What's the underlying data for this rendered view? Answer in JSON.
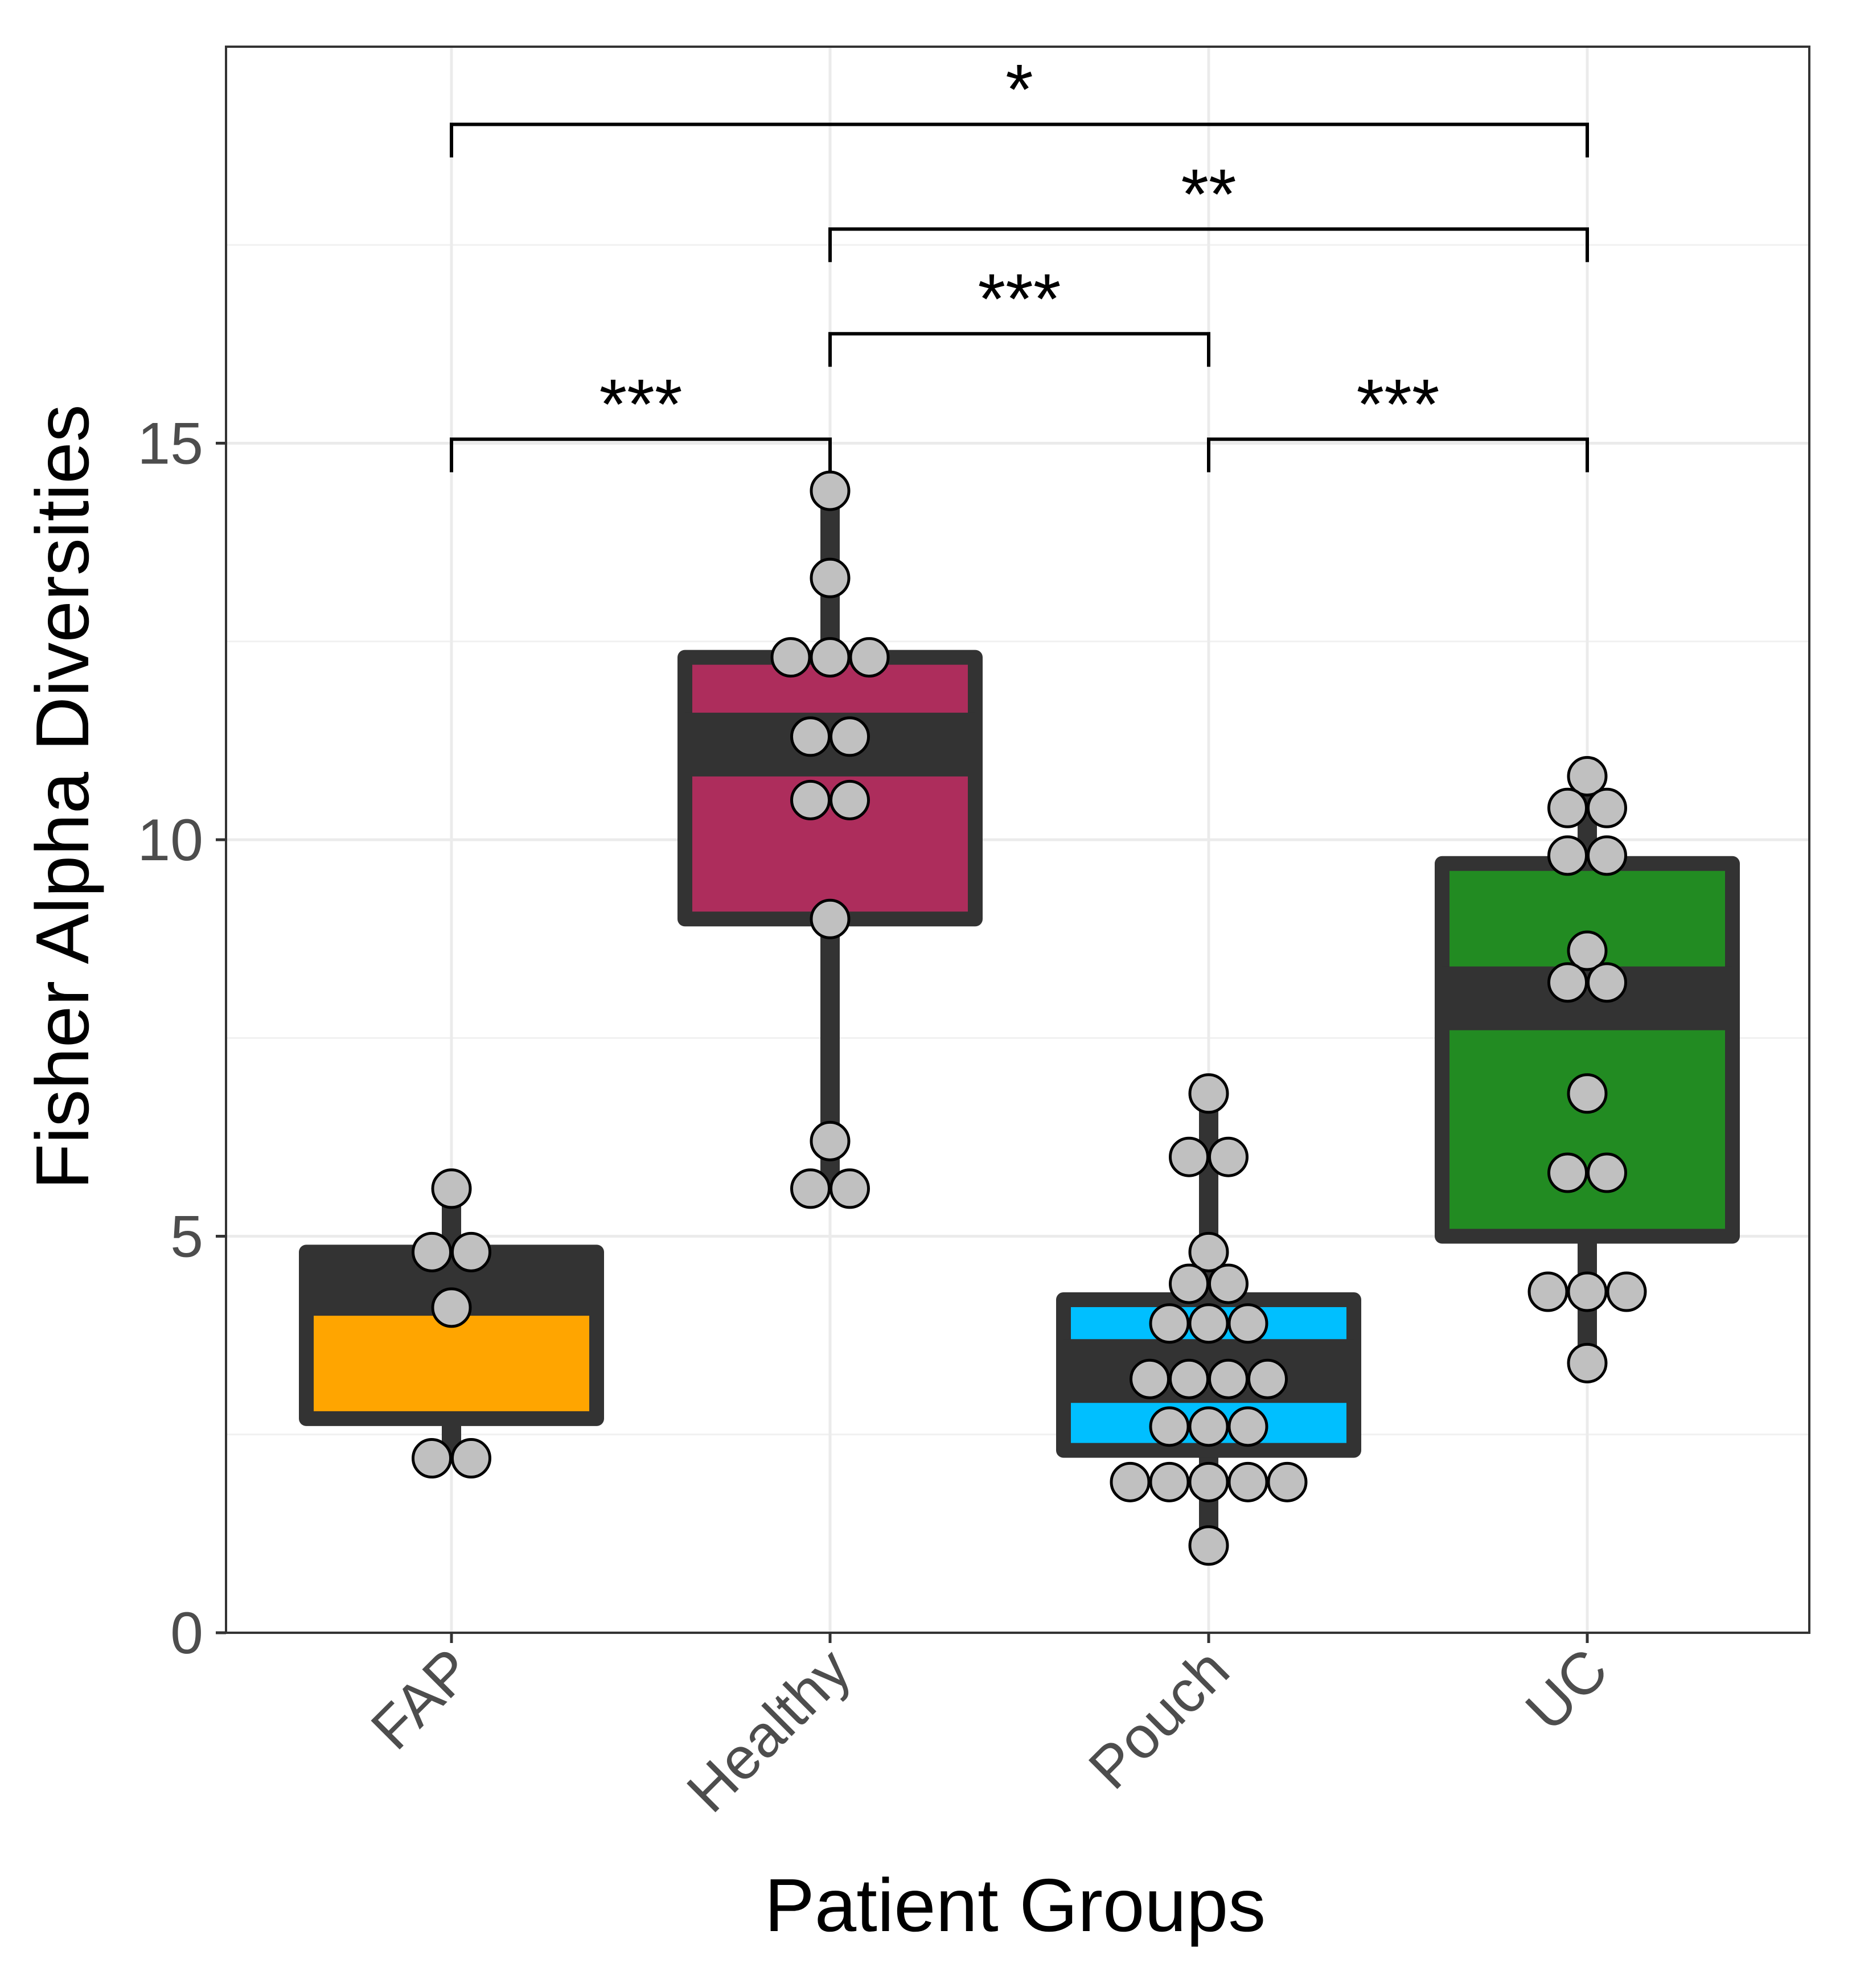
{
  "chart_data": {
    "type": "boxplot",
    "title": "",
    "xlabel": "Patient Groups",
    "ylabel": "Fisher Alpha Diversities",
    "ylim": [
      0,
      20
    ],
    "yticks": [
      0,
      5,
      10,
      15
    ],
    "grid": true,
    "categories": [
      "FAP",
      "Healthy",
      "Pouch",
      "UC"
    ],
    "colors": {
      "FAP": "#ffa500",
      "Healthy": "#ad2d5c",
      "Pouch": "#00bfff",
      "UC": "#228b22",
      "box_outline": "#333333",
      "points": "#c0c0c0"
    },
    "boxes": [
      {
        "group": "FAP",
        "whisker_low": 2.2,
        "q1": 2.7,
        "median": 4.4,
        "q3": 4.8,
        "whisker_high": 5.6
      },
      {
        "group": "Healthy",
        "whisker_low": 5.6,
        "q1": 9.0,
        "median": 11.2,
        "q3": 12.3,
        "whisker_high": 14.4
      },
      {
        "group": "Pouch",
        "whisker_low": 1.1,
        "q1": 2.3,
        "median": 3.3,
        "q3": 4.2,
        "whisker_high": 6.8
      },
      {
        "group": "UC",
        "whisker_low": 3.4,
        "q1": 5.0,
        "median": 8.0,
        "q3": 9.7,
        "whisker_high": 10.8
      }
    ],
    "points": [
      {
        "group": "FAP",
        "values": [
          5.6,
          4.8,
          4.8,
          4.1,
          2.2,
          2.2
        ]
      },
      {
        "group": "Healthy",
        "values": [
          14.4,
          13.3,
          12.3,
          12.3,
          12.3,
          11.3,
          11.3,
          10.5,
          10.5,
          9.0,
          6.2,
          5.6,
          5.6
        ]
      },
      {
        "group": "Pouch",
        "values": [
          6.8,
          6.0,
          6.0,
          4.8,
          4.4,
          4.4,
          3.9,
          3.9,
          3.9,
          3.2,
          3.2,
          3.2,
          3.2,
          2.6,
          2.6,
          2.6,
          1.9,
          1.9,
          1.9,
          1.9,
          1.9,
          1.1
        ]
      },
      {
        "group": "UC",
        "values": [
          10.8,
          10.4,
          10.4,
          9.8,
          9.8,
          8.6,
          8.2,
          8.2,
          6.8,
          5.8,
          5.8,
          4.3,
          4.3,
          4.3,
          3.4
        ]
      }
    ],
    "significance": [
      {
        "from": "FAP",
        "to": "Healthy",
        "label": "***"
      },
      {
        "from": "Healthy",
        "to": "Pouch",
        "label": "***"
      },
      {
        "from": "Pouch",
        "to": "UC",
        "label": "***"
      },
      {
        "from": "Healthy",
        "to": "UC",
        "label": "**"
      },
      {
        "from": "FAP",
        "to": "UC",
        "label": "*"
      }
    ]
  }
}
